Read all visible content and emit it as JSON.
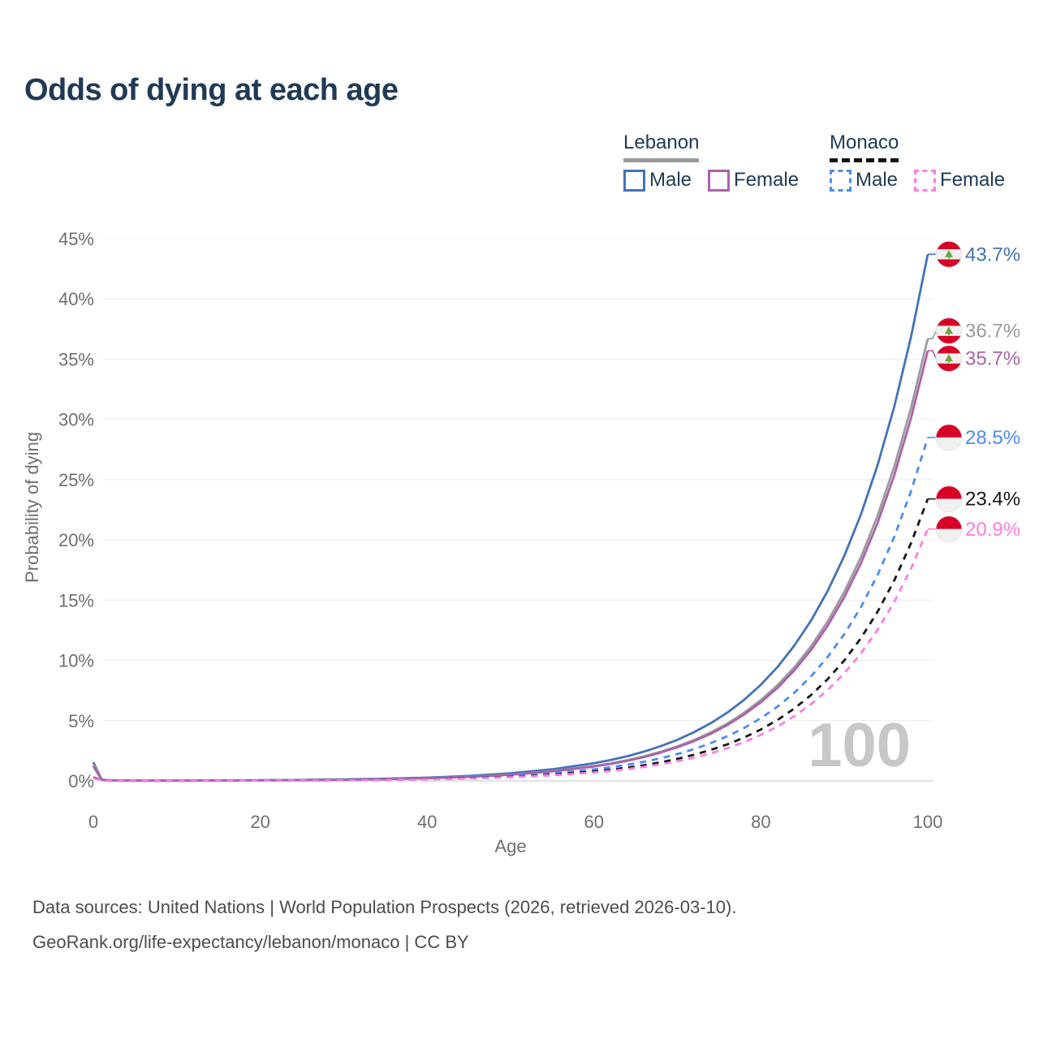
{
  "header": {
    "title": "Odds of dying at each age"
  },
  "legend": {
    "groups": [
      {
        "country": "Lebanon",
        "line_style": "solid",
        "items": [
          {
            "label": "Male"
          },
          {
            "label": "Female"
          }
        ]
      },
      {
        "country": "Monaco",
        "line_style": "dashed",
        "items": [
          {
            "label": "Male"
          },
          {
            "label": "Female"
          }
        ]
      }
    ]
  },
  "chart_data": {
    "type": "line",
    "title": "Odds of dying at each age",
    "xlabel": "Age",
    "ylabel": "Probability of dying",
    "xlim": [
      0,
      100
    ],
    "ylim": [
      0,
      45
    ],
    "grid": true,
    "watermark": "100",
    "x_tick_values": [
      0,
      20,
      40,
      60,
      80,
      100
    ],
    "x_tick_labels": [
      "0",
      "20",
      "40",
      "60",
      "80",
      "100"
    ],
    "y_tick_values": [
      45,
      40,
      35,
      30,
      25,
      20,
      15,
      10,
      5,
      0
    ],
    "y_tick_labels": [
      "45%",
      "40%",
      "35%",
      "30%",
      "25%",
      "20%",
      "15%",
      "10%",
      "5%",
      "0%"
    ],
    "ages": [
      0,
      1,
      2,
      5,
      10,
      15,
      20,
      25,
      30,
      35,
      40,
      45,
      50,
      55,
      60,
      62,
      64,
      66,
      68,
      70,
      72,
      74,
      76,
      78,
      80,
      82,
      84,
      86,
      88,
      90,
      92,
      94,
      96,
      98,
      100
    ],
    "series": [
      {
        "id": "lebanon-male",
        "name": "Lebanon Male",
        "country": "Lebanon",
        "sex": "Male",
        "color": "#4273b9",
        "dash": "solid",
        "flag": "lebanon",
        "end_value_pct": 43.7,
        "end_label": "43.7%",
        "values": [
          1.55,
          0.1,
          0.06,
          0.03,
          0.03,
          0.04,
          0.06,
          0.08,
          0.12,
          0.18,
          0.27,
          0.41,
          0.63,
          0.96,
          1.46,
          1.73,
          2.05,
          2.43,
          2.88,
          3.41,
          4.05,
          4.79,
          5.68,
          6.73,
          7.98,
          9.46,
          11.22,
          13.29,
          15.76,
          18.68,
          22.14,
          26.24,
          31.11,
          36.87,
          43.7
        ]
      },
      {
        "id": "lebanon-total",
        "name": "Lebanon (both sexes)",
        "country": "Lebanon",
        "sex": "Both",
        "color": "#9b9b9b",
        "dash": "solid",
        "flag": "lebanon",
        "end_value_pct": 36.7,
        "end_label": "36.7%",
        "values": [
          1.38,
          0.09,
          0.05,
          0.03,
          0.03,
          0.03,
          0.05,
          0.07,
          0.1,
          0.15,
          0.23,
          0.34,
          0.52,
          0.81,
          1.23,
          1.45,
          1.72,
          2.04,
          2.42,
          2.87,
          3.4,
          4.02,
          4.77,
          5.66,
          6.71,
          7.95,
          9.42,
          11.16,
          13.23,
          15.69,
          18.59,
          22.03,
          26.12,
          30.96,
          36.7
        ]
      },
      {
        "id": "lebanon-female",
        "name": "Lebanon Female",
        "country": "Lebanon",
        "sex": "Female",
        "color": "#ab61ab",
        "dash": "solid",
        "flag": "lebanon",
        "end_value_pct": 35.7,
        "end_label": "35.7%",
        "values": [
          1.22,
          0.08,
          0.04,
          0.02,
          0.02,
          0.03,
          0.04,
          0.06,
          0.09,
          0.14,
          0.21,
          0.33,
          0.51,
          0.78,
          1.19,
          1.41,
          1.67,
          1.98,
          2.35,
          2.79,
          3.3,
          3.91,
          4.64,
          5.51,
          6.53,
          7.73,
          9.16,
          10.86,
          12.87,
          15.26,
          18.08,
          21.43,
          25.41,
          30.12,
          35.7
        ]
      },
      {
        "id": "monaco-male",
        "name": "Monaco Male",
        "country": "Monaco",
        "sex": "Male",
        "color": "#4c8bf5",
        "dash": "dashed",
        "flag": "monaco",
        "end_value_pct": 28.5,
        "end_label": "28.5%",
        "values": [
          0.3,
          0.03,
          0.02,
          0.02,
          0.02,
          0.02,
          0.04,
          0.05,
          0.08,
          0.11,
          0.17,
          0.27,
          0.41,
          0.62,
          0.95,
          1.13,
          1.34,
          1.58,
          1.88,
          2.23,
          2.64,
          3.13,
          3.71,
          4.39,
          5.21,
          6.17,
          7.31,
          8.67,
          10.28,
          12.18,
          14.44,
          17.12,
          20.29,
          24.05,
          28.5
        ]
      },
      {
        "id": "monaco-total",
        "name": "Monaco (both sexes)",
        "country": "Monaco",
        "sex": "Both",
        "color": "#161616",
        "dash": "dashed",
        "flag": "monaco",
        "end_value_pct": 23.4,
        "end_label": "23.4%",
        "values": [
          0.26,
          0.03,
          0.02,
          0.01,
          0.01,
          0.02,
          0.03,
          0.04,
          0.06,
          0.09,
          0.14,
          0.22,
          0.33,
          0.51,
          0.78,
          0.93,
          1.1,
          1.3,
          1.54,
          1.83,
          2.17,
          2.57,
          3.04,
          3.6,
          4.27,
          5.06,
          6.0,
          7.12,
          8.44,
          10.0,
          11.86,
          14.05,
          16.66,
          19.74,
          23.4
        ]
      },
      {
        "id": "monaco-female",
        "name": "Monaco Female",
        "country": "Monaco",
        "sex": "Female",
        "color": "#ff7ce0",
        "dash": "dashed",
        "flag": "monaco",
        "end_value_pct": 20.9,
        "end_label": "20.9%",
        "values": [
          0.22,
          0.02,
          0.02,
          0.01,
          0.01,
          0.02,
          0.03,
          0.04,
          0.05,
          0.08,
          0.12,
          0.19,
          0.3,
          0.46,
          0.7,
          0.83,
          0.98,
          1.16,
          1.38,
          1.63,
          1.93,
          2.29,
          2.72,
          3.22,
          3.82,
          4.52,
          5.36,
          6.36,
          7.54,
          8.93,
          10.59,
          12.55,
          14.88,
          17.63,
          20.9
        ]
      }
    ]
  },
  "footer": {
    "line1": "Data sources: United Nations | World Population Prospects (2026, retrieved 2026-03-10).",
    "line2": "GeoRank.org/life-expectancy/lebanon/monaco | CC BY"
  },
  "colors": {
    "title_text": "#203a56",
    "axis_text": "#6f6f6f",
    "gridline": "#ececec",
    "zero_line": "#d5d5d5",
    "watermark": "#c7c7c7",
    "flag_red": "#d80027",
    "flag_white": "#f0f0f0",
    "cedar_green": "#6da544"
  }
}
